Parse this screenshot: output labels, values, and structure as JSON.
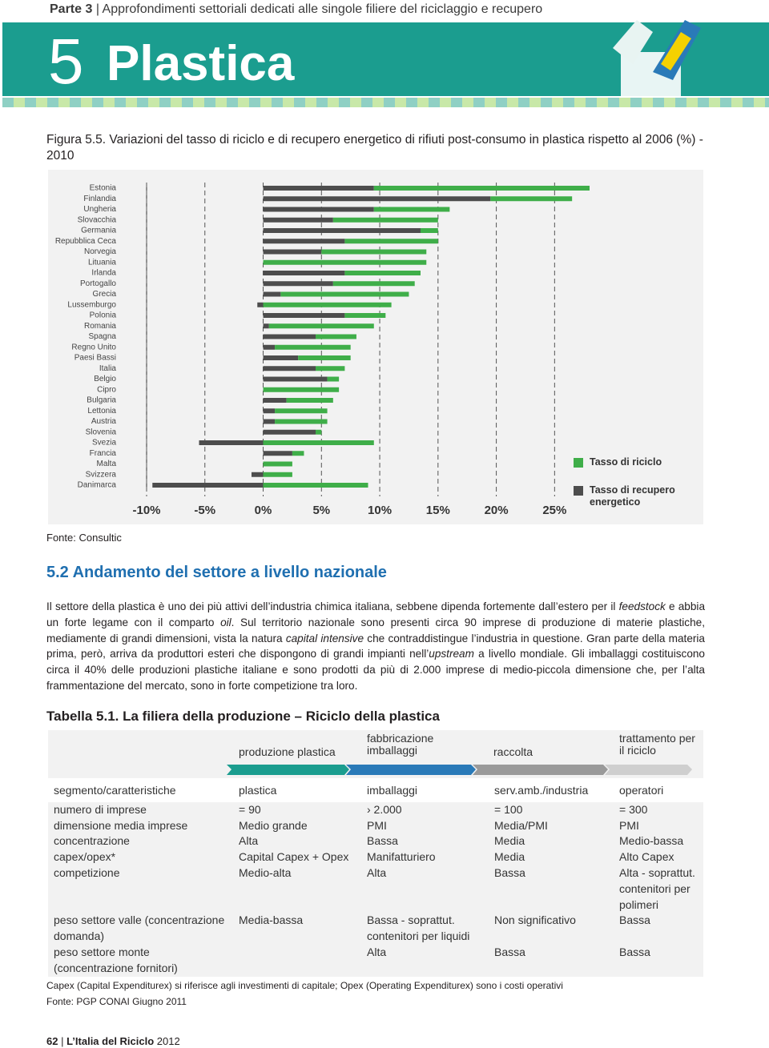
{
  "header": {
    "part": "Parte 3",
    "part_title": "Approfondimenti settoriali dedicati alle singole filiere del riciclaggio e recupero",
    "chapter_number": "5",
    "chapter_title": "Plastica"
  },
  "chart_data": {
    "type": "bar",
    "orientation": "horizontal",
    "stacked": true,
    "title": "Figura 5.5. Variazioni del tasso di riciclo e di recupero energetico di rifiuti post-consumo in plastica rispetto al 2006 (%) - 2010",
    "categories": [
      "Estonia",
      "Finlandia",
      "Ungheria",
      "Slovacchia",
      "Germania",
      "Repubblica Ceca",
      "Norvegia",
      "Lituania",
      "Irlanda",
      "Portogallo",
      "Grecia",
      "Lussemburgo",
      "Polonia",
      "Romania",
      "Spagna",
      "Regno Unito",
      "Paesi Bassi",
      "Italia",
      "Belgio",
      "Cipro",
      "Bulgaria",
      "Lettonia",
      "Austria",
      "Slovenia",
      "Svezia",
      "Francia",
      "Malta",
      "Svizzera",
      "Danimarca"
    ],
    "series": [
      {
        "name": "Tasso di riciclo",
        "color": "#3fae49",
        "values": [
          18.5,
          7,
          6.5,
          9,
          1.5,
          8,
          9,
          14,
          6.5,
          7,
          11,
          11,
          3.5,
          9,
          3.5,
          6.5,
          4.5,
          2.5,
          1,
          6.5,
          4,
          4.5,
          4.5,
          0.5,
          9.5,
          1,
          2.5,
          2.5,
          9
        ]
      },
      {
        "name": "Tasso di recupero energetico",
        "color": "#4d4d4d",
        "values": [
          9.5,
          19.5,
          9.5,
          6,
          13.5,
          7,
          5,
          0,
          7,
          6,
          1.5,
          -0.5,
          7,
          0.5,
          4.5,
          1,
          3,
          4.5,
          5.5,
          0,
          2,
          1,
          1,
          4.5,
          -5.5,
          2.5,
          0,
          -1,
          -9.5
        ]
      }
    ],
    "xlim": [
      -10,
      28
    ],
    "xticks": [
      {
        "value": -10,
        "label": "-10%"
      },
      {
        "value": -5,
        "label": "-5%"
      },
      {
        "value": 0,
        "label": "0%"
      },
      {
        "value": 5,
        "label": "5%"
      },
      {
        "value": 10,
        "label": "10%"
      },
      {
        "value": 15,
        "label": "15%"
      },
      {
        "value": 20,
        "label": "20%"
      },
      {
        "value": 25,
        "label": "25%"
      }
    ],
    "grid": true,
    "legend": "right"
  },
  "chart_source": "Fonte: Consultic",
  "section": {
    "title": "5.2 Andamento del settore a livello nazionale",
    "paragraph": [
      "Il settore della plastica è uno dei più attivi dell’industria chimica italiana, sebbene dipenda fortemente dall’estero per il ",
      "feedstock",
      " e abbia un forte legame con il comparto ",
      "oil",
      ". Sul territorio nazionale sono presenti circa 90 imprese di produzione di materie plastiche, mediamente di grandi dimensioni, vista la natura ",
      "capital intensive",
      " che contraddistingue l’industria in questione. Gran parte della materia prima, però, arriva da produttori esteri che dispongono di grandi impianti nell’",
      "upstream",
      " a livello mondiale. Gli imballaggi costituiscono circa il 40% delle produzioni plastiche italiane e sono prodotti da più di 2.000 imprese di medio-piccola dimensione che, per l’alta frammentazione del mercato, sono in forte competizione tra loro."
    ]
  },
  "table": {
    "title": "Tabella 5.1. La filiera della produzione – Riciclo della plastica",
    "columns": [
      "produzione plastica",
      "fabbricazione imballaggi",
      "raccolta",
      "trattamento per il riciclo"
    ],
    "rows": [
      [
        "segmento/caratteristiche",
        "plastica",
        "imballaggi",
        "serv.amb./industria",
        "operatori"
      ],
      [
        "numero di imprese",
        "= 90",
        "› 2.000",
        "= 100",
        "= 300"
      ],
      [
        "dimensione media imprese",
        "Medio grande",
        "PMI",
        "Media/PMI",
        "PMI"
      ],
      [
        "concentrazione",
        "Alta",
        "Bassa",
        "Media",
        "Medio-bassa"
      ],
      [
        "capex/opex*",
        "Capital Capex + Opex",
        "Manifatturiero",
        "Media",
        "Alto Capex"
      ],
      [
        "competizione",
        "Medio-alta",
        "Alta",
        "Bassa",
        "Alta - soprattut. contenitori per polimeri"
      ],
      [
        "peso settore valle (concentrazione domanda)",
        "Media-bassa",
        "Bassa - soprattut. contenitori per liquidi",
        "Non significativo",
        "Bassa"
      ],
      [
        "peso settore monte (concentrazione fornitori)",
        null,
        "Alta",
        "Bassa",
        "Bassa"
      ]
    ],
    "note": "Capex (Capital Expenditurex) si riferisce agli investimenti di capitale; Opex (Operating Expenditurex) sono i costi operativi",
    "source": "Fonte: PGP CONAI Giugno 2011"
  },
  "footer": {
    "page_number": "62",
    "publication": "L’Italia del Riciclo",
    "year": "2012"
  }
}
